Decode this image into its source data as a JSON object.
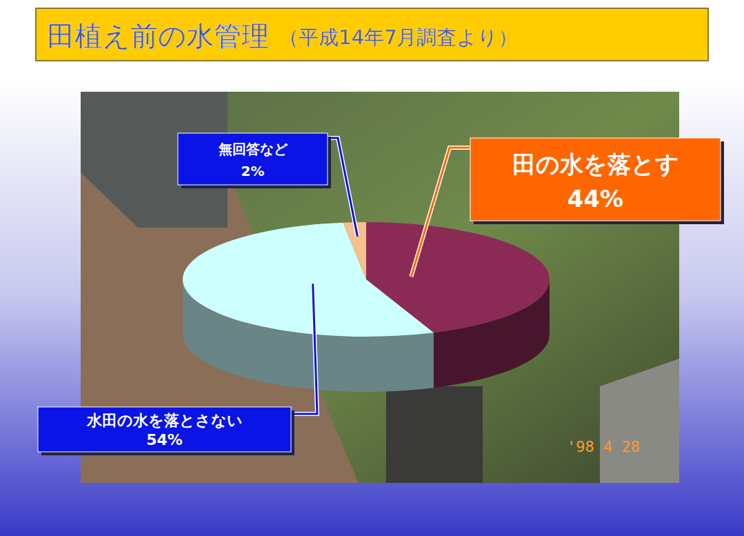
{
  "chart_data": {
    "type": "pie",
    "title": "田植え前の水管理",
    "subtitle": "（平成14年7月調査より）",
    "categories": [
      "田の水を落とす",
      "水田の水を落とさない",
      "無回答など"
    ],
    "values": [
      44,
      54,
      2
    ],
    "value_labels": [
      "44%",
      "54%",
      "2%"
    ],
    "colors": [
      "#8b2b55",
      "#ccffff",
      "#f5c08a"
    ],
    "data_labels": true,
    "annotations": [
      "'98  4 28"
    ]
  }
}
